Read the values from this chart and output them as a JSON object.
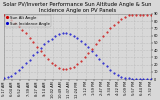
{
  "title": "Solar PV/Inverter Performance Sun Altitude Angle & Sun Incidence Angle on PV Panels",
  "legend": [
    "Sun Alt Angle",
    "Sun Incidence Angle"
  ],
  "blue_color": "#0000cc",
  "red_color": "#cc0000",
  "bg_color": "#d8d8d8",
  "plot_bg": "#d8d8d8",
  "ylim": [
    0,
    90
  ],
  "blue_x": [
    0,
    1,
    2,
    3,
    4,
    5,
    6,
    7,
    8,
    9,
    10,
    11,
    12,
    13,
    14,
    15,
    16,
    17,
    18,
    19,
    20,
    21,
    22,
    23,
    24,
    25,
    26,
    27,
    28,
    29,
    30,
    31,
    32,
    33,
    34,
    35,
    36,
    37,
    38,
    39,
    40
  ],
  "blue_y": [
    2,
    3,
    5,
    8,
    12,
    17,
    22,
    27,
    33,
    38,
    43,
    48,
    52,
    56,
    59,
    62,
    63,
    63,
    62,
    60,
    57,
    53,
    49,
    44,
    39,
    34,
    28,
    23,
    18,
    13,
    9,
    6,
    3,
    2,
    1,
    0,
    0,
    0,
    0,
    0,
    0
  ],
  "red_x": [
    0,
    1,
    2,
    3,
    4,
    5,
    6,
    7,
    8,
    9,
    10,
    11,
    12,
    13,
    14,
    15,
    16,
    17,
    18,
    19,
    20,
    21,
    22,
    23,
    24,
    25,
    26,
    27,
    28,
    29,
    30,
    31,
    32,
    33,
    34,
    35,
    36,
    37,
    38,
    39,
    40
  ],
  "red_y": [
    88,
    85,
    82,
    78,
    73,
    68,
    63,
    57,
    51,
    45,
    39,
    33,
    28,
    23,
    19,
    16,
    14,
    14,
    15,
    17,
    21,
    25,
    30,
    36,
    42,
    48,
    54,
    60,
    65,
    70,
    75,
    79,
    83,
    86,
    88,
    89,
    89,
    89,
    89,
    89,
    89
  ],
  "xlabels": [
    "5:17 AM",
    "6:04 AM",
    "6:52 AM",
    "7:39 AM",
    "8:27 AM",
    "9:14 AM",
    "10:02 AM",
    "10:49 AM",
    "11:37 AM",
    "12:24 PM",
    "1:12 PM",
    "1:59 PM",
    "2:47 PM",
    "3:34 PM",
    "4:22 PM",
    "5:09 PM",
    "5:57 PM",
    "6:44 PM",
    "7:32 PM"
  ],
  "xlim": [
    0,
    40
  ],
  "title_fontsize": 3.8,
  "tick_fontsize": 2.5,
  "legend_fontsize": 2.8,
  "marker_size": 0.9,
  "grid_color": "#aaaaaa",
  "text_color": "#000000",
  "spine_color": "#888888"
}
